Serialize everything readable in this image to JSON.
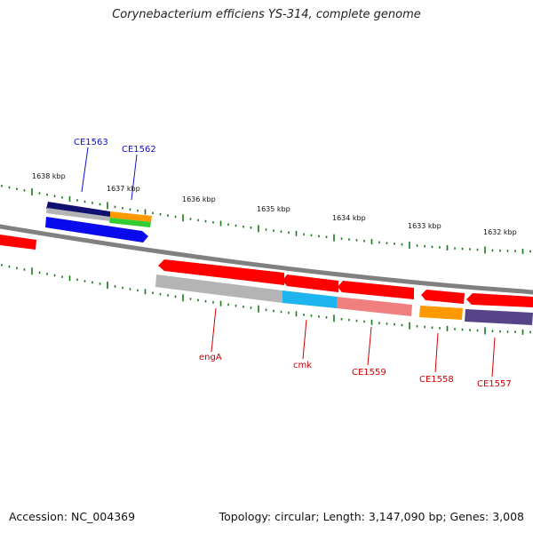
{
  "title": "Corynebacterium efficiens YS-314, complete genome",
  "footer": {
    "accession": "Accession: NC_004369",
    "summary": "Topology: circular; Length: 3,147,090 bp; Genes: 3,008"
  },
  "colors": {
    "backbone": "#808080",
    "tick": "#1a7a1a",
    "gene_forward": "#ff0000",
    "gene_grey": "#b4b4b4",
    "gene_cyan": "#1eb4f0",
    "gene_pink": "#f08080",
    "gene_orange": "#ff9900",
    "gene_purple": "#554488",
    "gene_navy": "#101070",
    "gene_blue": "#0a0aee",
    "gene_green": "#33cc33",
    "label_blue": "#1010cc",
    "label_red": "#cc0000"
  },
  "ruler_labels": [
    {
      "text": "1638 kbp"
    },
    {
      "text": "1637 kbp"
    },
    {
      "text": "1636 kbp"
    },
    {
      "text": "1635 kbp"
    },
    {
      "text": "1634 kbp"
    },
    {
      "text": "1633 kbp"
    },
    {
      "text": "1632 kbp"
    }
  ],
  "top_gene_labels": [
    {
      "id": "CE1563"
    },
    {
      "id": "CE1562"
    }
  ],
  "bottom_gene_labels": [
    {
      "id": "engA"
    },
    {
      "id": "cmk"
    },
    {
      "id": "CE1559"
    },
    {
      "id": "CE1558"
    },
    {
      "id": "CE1557"
    }
  ]
}
